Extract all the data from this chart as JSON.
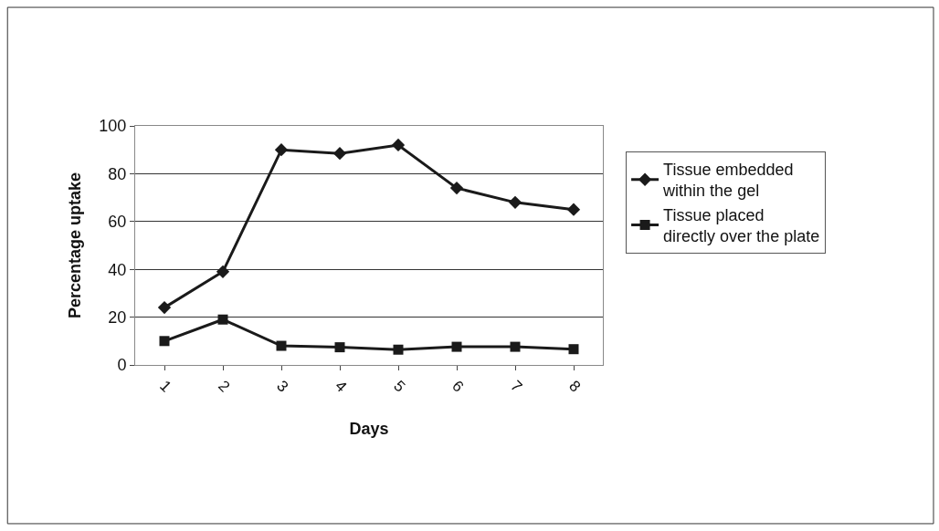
{
  "chart_data": {
    "type": "line",
    "xlabel": "Days",
    "ylabel": "Percentage uptake",
    "categories": [
      "1",
      "2",
      "3",
      "4",
      "5",
      "6",
      "7",
      "8"
    ],
    "series": [
      {
        "name": "Tissue embedded\nwithin the gel",
        "color": "#1a1a1a",
        "marker": "diamond",
        "values": [
          24,
          39,
          90,
          88.5,
          92,
          74,
          68,
          65
        ]
      },
      {
        "name": "Tissue placed\ndirectly over the plate",
        "color": "#1a1a1a",
        "marker": "square",
        "values": [
          10,
          19,
          8,
          7.4,
          6.4,
          7.6,
          7.6,
          6.6
        ]
      }
    ],
    "ylim": [
      0,
      100
    ],
    "yticks": [
      0,
      20,
      40,
      60,
      80,
      100
    ],
    "grid": "y",
    "legend": "right",
    "line_style": "solid"
  }
}
